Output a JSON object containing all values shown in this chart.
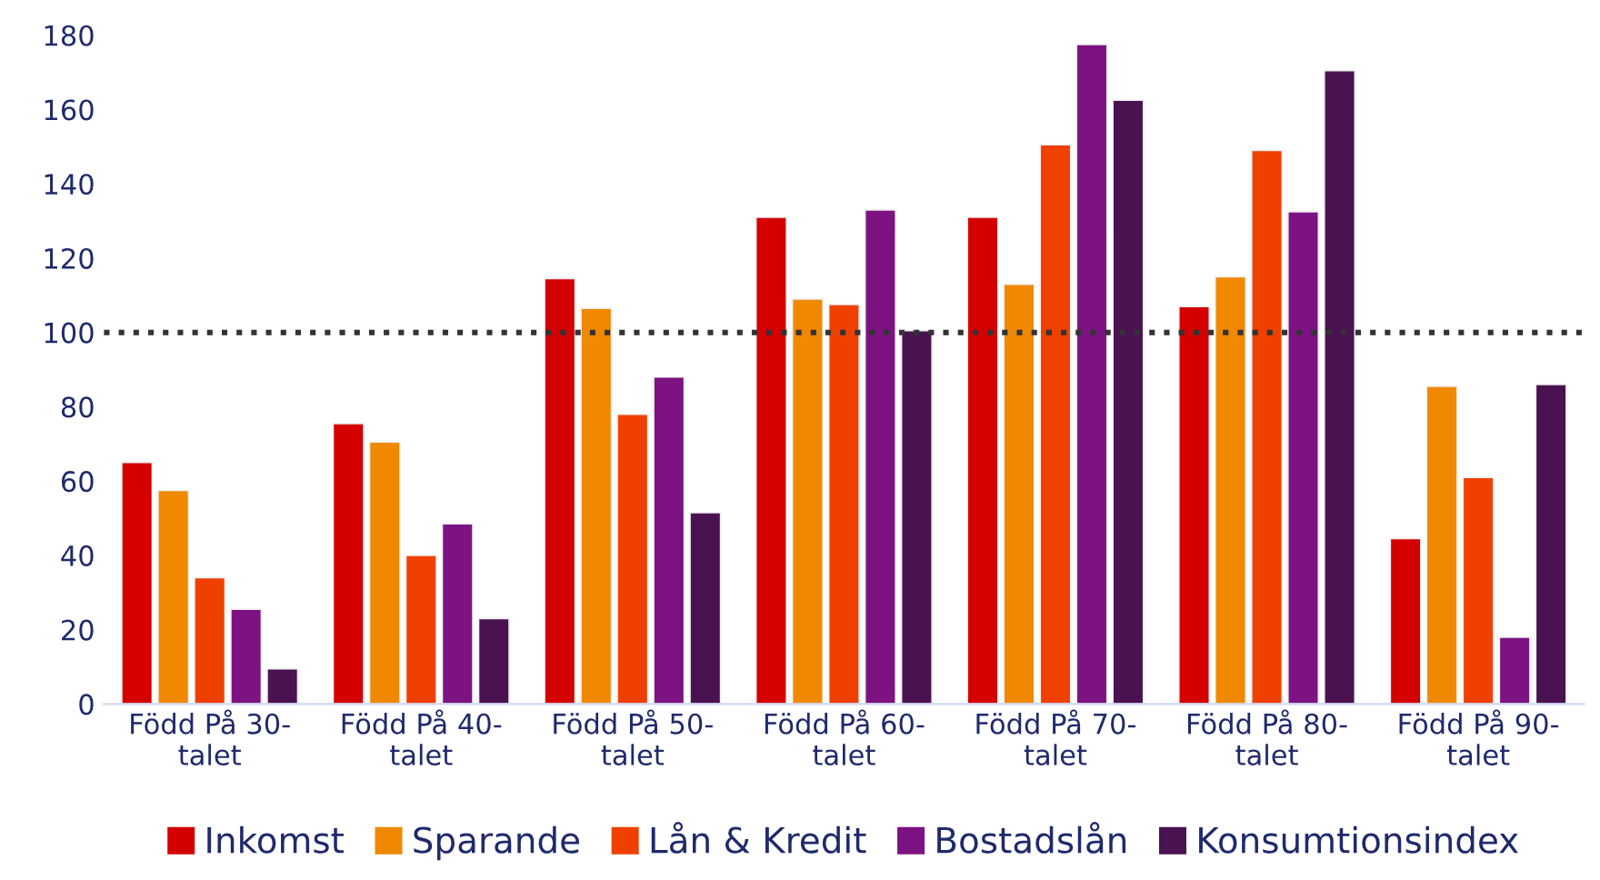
{
  "chart_data": {
    "type": "bar",
    "categories": [
      "Född På 30-talet",
      "Född På 40-talet",
      "Född På 50-talet",
      "Född På 60-talet",
      "Född På 70-talet",
      "Född På 80-talet",
      "Född På 90-talet"
    ],
    "series": [
      {
        "name": "Inkomst",
        "color": "#d40000",
        "values": [
          65,
          75.5,
          114.5,
          131,
          131,
          107,
          44.5
        ]
      },
      {
        "name": "Sparande",
        "color": "#f08800",
        "values": [
          57.5,
          70.5,
          106.5,
          109,
          113,
          115,
          85.5
        ]
      },
      {
        "name": "Lån & Kredit",
        "color": "#f04000",
        "values": [
          34,
          40,
          78,
          107.5,
          150.5,
          149,
          61
        ]
      },
      {
        "name": "Bostadslån",
        "color": "#7d1282",
        "values": [
          25.5,
          48.5,
          88,
          133,
          177.5,
          132.5,
          18
        ]
      },
      {
        "name": "Konsumtionsindex",
        "color": "#4a1250",
        "values": [
          9.5,
          23,
          51.5,
          100.5,
          162.5,
          170.5,
          86
        ]
      }
    ],
    "ylim": [
      0,
      180
    ],
    "yticks": [
      0,
      20,
      40,
      60,
      80,
      100,
      120,
      140,
      160,
      180
    ],
    "grid": false,
    "legend": "bottom",
    "ref_lines": [
      {
        "axis": "y",
        "value": 100,
        "color": "#333333",
        "line_style": "dotted"
      }
    ]
  }
}
